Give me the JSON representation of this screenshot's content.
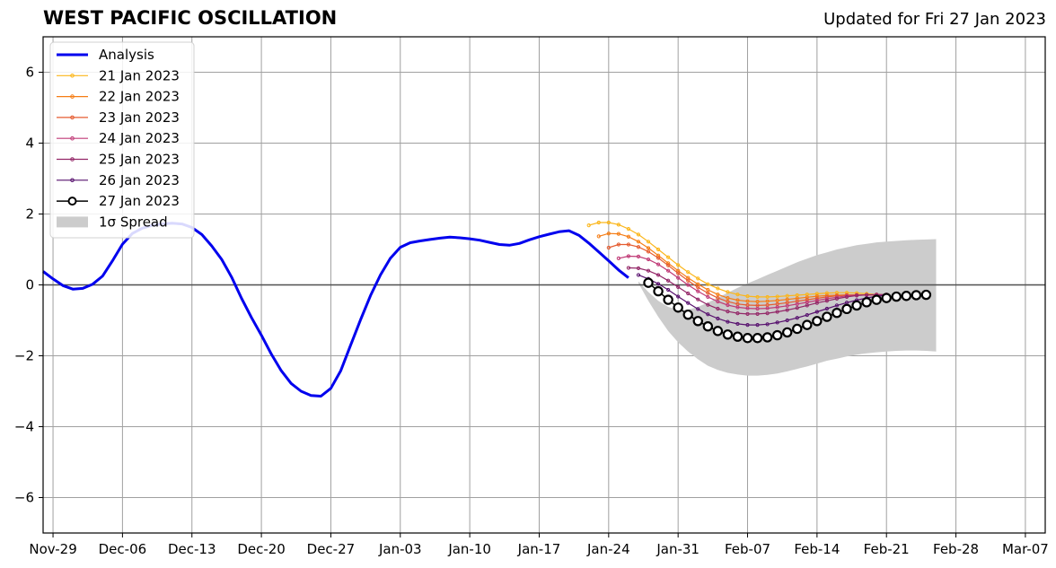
{
  "chart_data": {
    "type": "line",
    "title": "WEST PACIFIC OSCILLATION",
    "subtitle": "Updated for Fri 27 Jan 2023",
    "xlabel": "",
    "ylabel": "",
    "x_tick_labels": [
      "Nov-29",
      "Dec-06",
      "Dec-13",
      "Dec-20",
      "Dec-27",
      "Jan-03",
      "Jan-10",
      "Jan-17",
      "Jan-24",
      "Jan-31",
      "Feb-07",
      "Feb-14",
      "Feb-21",
      "Feb-28",
      "Mar-07"
    ],
    "y_ticks": [
      -6,
      -4,
      -2,
      0,
      2,
      4,
      6
    ],
    "ylim": [
      -7,
      7
    ],
    "grid": true,
    "legend_placement": "top-left",
    "x_start": "2022-11-28",
    "x_end": "2023-03-09",
    "analysis": {
      "name": "Analysis",
      "color": "#0000ee",
      "x": [
        "2022-11-28",
        "2022-11-29",
        "2022-11-30",
        "2022-12-01",
        "2022-12-02",
        "2022-12-03",
        "2022-12-04",
        "2022-12-05",
        "2022-12-06",
        "2022-12-07",
        "2022-12-08",
        "2022-12-09",
        "2022-12-10",
        "2022-12-11",
        "2022-12-12",
        "2022-12-13",
        "2022-12-14",
        "2022-12-15",
        "2022-12-16",
        "2022-12-17",
        "2022-12-18",
        "2022-12-19",
        "2022-12-20",
        "2022-12-21",
        "2022-12-22",
        "2022-12-23",
        "2022-12-24",
        "2022-12-25",
        "2022-12-26",
        "2022-12-27",
        "2022-12-28",
        "2022-12-29",
        "2022-12-30",
        "2022-12-31",
        "2023-01-01",
        "2023-01-02",
        "2023-01-03",
        "2023-01-04",
        "2023-01-05",
        "2023-01-06",
        "2023-01-07",
        "2023-01-08",
        "2023-01-09",
        "2023-01-10",
        "2023-01-11",
        "2023-01-12",
        "2023-01-13",
        "2023-01-14",
        "2023-01-15",
        "2023-01-16",
        "2023-01-17",
        "2023-01-18",
        "2023-01-19",
        "2023-01-20",
        "2023-01-21",
        "2023-01-22",
        "2023-01-23",
        "2023-01-24",
        "2023-01-25",
        "2023-01-26"
      ],
      "values": [
        0.38,
        0.17,
        -0.02,
        -0.12,
        -0.1,
        0.02,
        0.25,
        0.68,
        1.15,
        1.45,
        1.6,
        1.68,
        1.72,
        1.74,
        1.72,
        1.62,
        1.42,
        1.1,
        0.72,
        0.22,
        -0.38,
        -0.92,
        -1.42,
        -1.95,
        -2.42,
        -2.78,
        -3.0,
        -3.12,
        -3.14,
        -2.92,
        -2.42,
        -1.7,
        -0.98,
        -0.3,
        0.28,
        0.75,
        1.06,
        1.19,
        1.24,
        1.28,
        1.32,
        1.35,
        1.33,
        1.3,
        1.26,
        1.2,
        1.14,
        1.12,
        1.17,
        1.27,
        1.36,
        1.43,
        1.5,
        1.53,
        1.4,
        1.18,
        0.93,
        0.68,
        0.42,
        0.2
      ]
    },
    "spread": {
      "name": "1σ Spread",
      "color": "#cccccc",
      "x": [
        "2023-01-27",
        "2023-01-28",
        "2023-01-29",
        "2023-01-30",
        "2023-01-31",
        "2023-02-01",
        "2023-02-02",
        "2023-02-03",
        "2023-02-04",
        "2023-02-05",
        "2023-02-06",
        "2023-02-07",
        "2023-02-08",
        "2023-02-09",
        "2023-02-10",
        "2023-02-11",
        "2023-02-12",
        "2023-02-13",
        "2023-02-14",
        "2023-02-15",
        "2023-02-16",
        "2023-02-17",
        "2023-02-18",
        "2023-02-19",
        "2023-02-20",
        "2023-02-21",
        "2023-02-22",
        "2023-02-23",
        "2023-02-24",
        "2023-02-25",
        "2023-02-26"
      ],
      "upper": [
        0.1,
        -0.2,
        -0.45,
        -0.62,
        -0.7,
        -0.7,
        -0.62,
        -0.5,
        -0.36,
        -0.22,
        -0.08,
        0.04,
        0.16,
        0.28,
        0.4,
        0.52,
        0.64,
        0.74,
        0.84,
        0.92,
        1.0,
        1.06,
        1.12,
        1.16,
        1.2,
        1.22,
        1.24,
        1.26,
        1.27,
        1.28,
        1.29
      ],
      "lower": [
        0.05,
        -0.45,
        -0.9,
        -1.3,
        -1.62,
        -1.88,
        -2.1,
        -2.28,
        -2.4,
        -2.48,
        -2.53,
        -2.56,
        -2.56,
        -2.54,
        -2.5,
        -2.44,
        -2.37,
        -2.3,
        -2.22,
        -2.14,
        -2.08,
        -2.02,
        -1.97,
        -1.93,
        -1.9,
        -1.88,
        -1.86,
        -1.85,
        -1.85,
        -1.86,
        -1.88
      ]
    },
    "forecasts": [
      {
        "name": "21 Jan 2023",
        "color": "#fbb61a",
        "x_start": "2023-01-22",
        "values": [
          1.68,
          1.76,
          1.76,
          1.7,
          1.58,
          1.42,
          1.22,
          1.0,
          0.78,
          0.56,
          0.36,
          0.18,
          0.02,
          -0.1,
          -0.2,
          -0.27,
          -0.32,
          -0.34,
          -0.34,
          -0.33,
          -0.31,
          -0.29,
          -0.27,
          -0.25,
          -0.23,
          -0.22,
          -0.22,
          -0.23,
          -0.25,
          -0.27,
          -0.28
        ]
      },
      {
        "name": "22 Jan 2023",
        "color": "#f57d15",
        "x_start": "2023-01-23",
        "values": [
          1.37,
          1.45,
          1.44,
          1.36,
          1.22,
          1.04,
          0.83,
          0.61,
          0.4,
          0.2,
          0.02,
          -0.14,
          -0.27,
          -0.37,
          -0.43,
          -0.46,
          -0.47,
          -0.46,
          -0.44,
          -0.41,
          -0.38,
          -0.35,
          -0.32,
          -0.3,
          -0.29,
          -0.28,
          -0.28,
          -0.28,
          -0.29,
          -0.3
        ]
      },
      {
        "name": "23 Jan 2023",
        "color": "#e55c30",
        "x_start": "2023-01-24",
        "values": [
          1.05,
          1.14,
          1.14,
          1.07,
          0.94,
          0.76,
          0.55,
          0.33,
          0.12,
          -0.07,
          -0.23,
          -0.37,
          -0.47,
          -0.54,
          -0.57,
          -0.58,
          -0.57,
          -0.54,
          -0.5,
          -0.46,
          -0.42,
          -0.38,
          -0.34,
          -0.31,
          -0.29,
          -0.28,
          -0.28,
          -0.28,
          -0.29
        ]
      },
      {
        "name": "24 Jan 2023",
        "color": "#c03a76",
        "x_start": "2023-01-25",
        "values": [
          0.75,
          0.81,
          0.8,
          0.72,
          0.58,
          0.4,
          0.2,
          0.0,
          -0.18,
          -0.34,
          -0.47,
          -0.57,
          -0.63,
          -0.66,
          -0.67,
          -0.66,
          -0.63,
          -0.59,
          -0.54,
          -0.49,
          -0.44,
          -0.39,
          -0.35,
          -0.31,
          -0.29,
          -0.28,
          -0.28,
          -0.29
        ]
      },
      {
        "name": "25 Jan 2023",
        "color": "#932667",
        "x_start": "2023-01-26",
        "values": [
          0.48,
          0.47,
          0.4,
          0.28,
          0.12,
          -0.06,
          -0.24,
          -0.41,
          -0.56,
          -0.67,
          -0.75,
          -0.8,
          -0.82,
          -0.82,
          -0.8,
          -0.76,
          -0.71,
          -0.65,
          -0.58,
          -0.51,
          -0.45,
          -0.39,
          -0.34,
          -0.3,
          -0.28,
          -0.27,
          -0.27
        ]
      },
      {
        "name": "26 Jan 2023",
        "color": "#57106e",
        "x_start": "2023-01-27",
        "values": [
          0.28,
          0.17,
          0.03,
          -0.14,
          -0.33,
          -0.51,
          -0.68,
          -0.83,
          -0.95,
          -1.04,
          -1.1,
          -1.13,
          -1.13,
          -1.11,
          -1.06,
          -1.0,
          -0.93,
          -0.85,
          -0.76,
          -0.67,
          -0.58,
          -0.5,
          -0.43,
          -0.37,
          -0.32,
          -0.29
        ]
      },
      {
        "name": "27 Jan 2023",
        "color": "#000000",
        "x_start": "2023-01-28",
        "values": [
          0.06,
          -0.18,
          -0.42,
          -0.64,
          -0.84,
          -1.02,
          -1.17,
          -1.3,
          -1.4,
          -1.46,
          -1.5,
          -1.5,
          -1.48,
          -1.42,
          -1.34,
          -1.24,
          -1.13,
          -1.02,
          -0.9,
          -0.79,
          -0.68,
          -0.58,
          -0.49,
          -0.42,
          -0.37,
          -0.33,
          -0.31,
          -0.29,
          -0.28
        ]
      }
    ]
  }
}
